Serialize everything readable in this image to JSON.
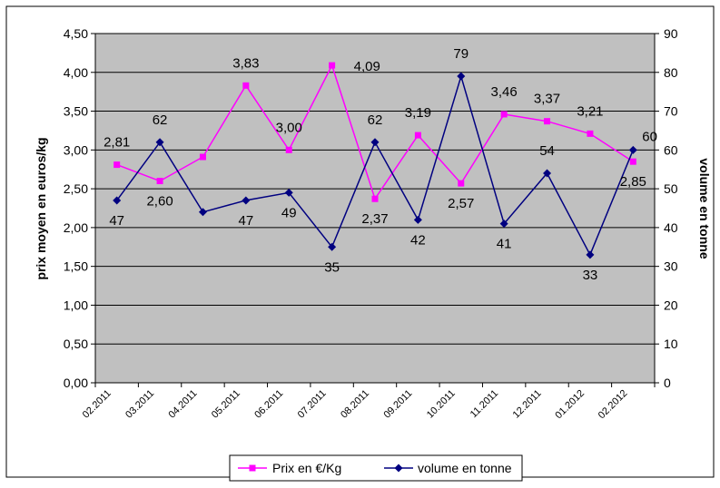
{
  "chart_data": {
    "type": "line",
    "categories": [
      "02.2011",
      "03.2011",
      "04.2011",
      "05.2011",
      "06.2011",
      "07.2011",
      "08.2011",
      "09.2011",
      "10.2011",
      "11.2011",
      "12.2011",
      "01.2012",
      "02.2012"
    ],
    "series": [
      {
        "name": "Prix en €/Kg",
        "axis": "left",
        "color": "#ff00ff",
        "marker": "square",
        "values": [
          2.81,
          2.6,
          2.91,
          3.83,
          3.0,
          4.09,
          2.37,
          3.19,
          2.57,
          3.46,
          3.37,
          3.21,
          2.85
        ],
        "labels": [
          "2,81",
          "2,60",
          "",
          "3,83",
          "3,00",
          "4,09",
          "2,37",
          "3,19",
          "2,57",
          "3,46",
          "3,37",
          "3,21",
          "2,85"
        ]
      },
      {
        "name": "volume en tonne",
        "axis": "right",
        "color": "#000080",
        "marker": "diamond",
        "values": [
          47,
          62,
          44,
          47,
          49,
          35,
          62,
          42,
          79,
          41,
          54,
          33,
          60
        ],
        "labels": [
          "47",
          "62",
          "",
          "47",
          "49",
          "35",
          "62",
          "42",
          "79",
          "41",
          "54",
          "33",
          "60"
        ]
      }
    ],
    "ylabel": "prix moyen en euros/kg",
    "y2label": "volume en tonne",
    "ylim": [
      0,
      4.5
    ],
    "y2lim": [
      0,
      90
    ],
    "yticks": [
      "0,00",
      "0,50",
      "1,00",
      "1,50",
      "2,00",
      "2,50",
      "3,00",
      "3,50",
      "4,00",
      "4,50"
    ],
    "y2ticks": [
      "0",
      "10",
      "20",
      "30",
      "40",
      "50",
      "60",
      "70",
      "80",
      "90"
    ],
    "grid": true,
    "plot_background": "#c0c0c0",
    "legend_position": "bottom"
  }
}
